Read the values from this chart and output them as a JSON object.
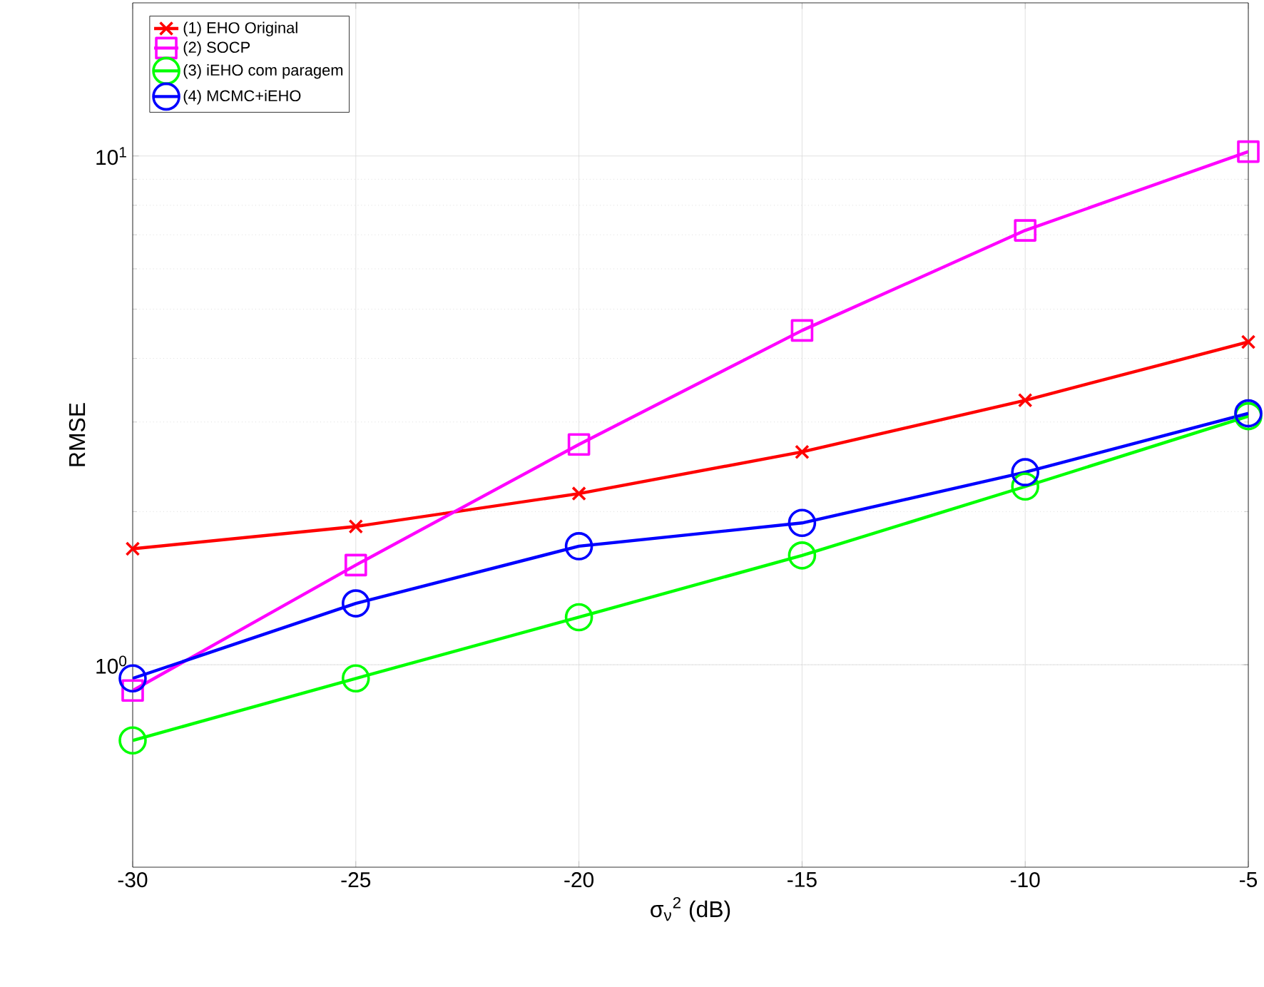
{
  "chart_data": {
    "type": "line",
    "xlabel": "σ$_{ν}$$^{2}$ (dB)",
    "ylabel": "RMSE",
    "x": [
      -30,
      -25,
      -20,
      -15,
      -10,
      -5
    ],
    "series": [
      {
        "name": "(1) EHO Original",
        "color": "#ff0000",
        "marker": "cross",
        "values": [
          1.69,
          1.87,
          2.17,
          2.62,
          3.31,
          4.31
        ]
      },
      {
        "name": "(2) SOCP",
        "color": "#ff00ff",
        "marker": "square",
        "values": [
          0.89,
          1.57,
          2.71,
          4.54,
          7.14,
          10.2
        ]
      },
      {
        "name": "(3) iEHO com paragem",
        "color": "#00ff00",
        "marker": "circle",
        "values": [
          0.71,
          0.94,
          1.24,
          1.64,
          2.24,
          3.08
        ]
      },
      {
        "name": "(4) MCMC+iEHO",
        "color": "#0000ff",
        "marker": "circle",
        "values": [
          0.94,
          1.32,
          1.71,
          1.9,
          2.39,
          3.12
        ]
      }
    ],
    "xlim": [
      -30,
      -5
    ],
    "ylim": [
      0.4,
      20
    ],
    "log": "y",
    "xticks": [
      -30,
      -25,
      -20,
      -15,
      -10,
      -5
    ],
    "yticks": [
      {
        "value": 1,
        "label": "10$^{0}$"
      },
      {
        "value": 10,
        "label": "10$^{1}$"
      }
    ],
    "grid": true,
    "legend": "top left",
    "line_style": "solid"
  }
}
